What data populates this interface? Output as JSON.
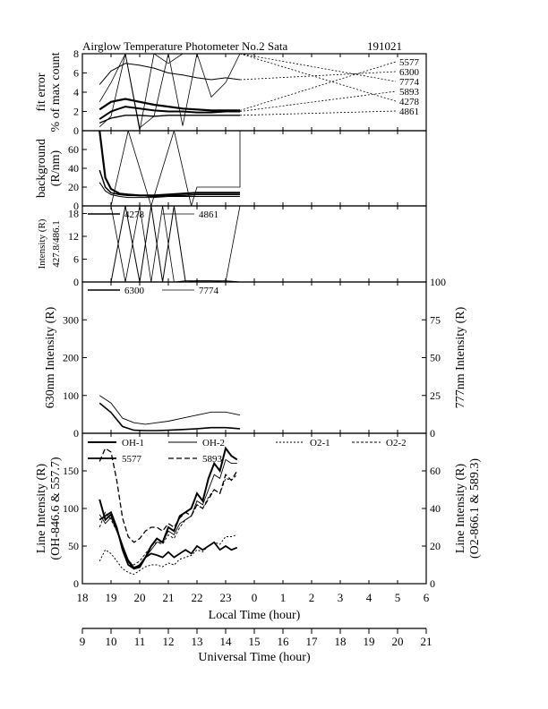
{
  "header": {
    "title": "Airglow Temperature Photometer No.2  Sata",
    "date": "191021"
  },
  "x_axes": {
    "local": {
      "label": "Local Time (hour)",
      "ticks": [
        "18",
        "19",
        "20",
        "21",
        "22",
        "23",
        "0",
        "1",
        "2",
        "3",
        "4",
        "5",
        "6"
      ]
    },
    "ut": {
      "label": "Universal Time (hour)",
      "ticks": [
        "9",
        "10",
        "11",
        "12",
        "13",
        "14",
        "15",
        "16",
        "17",
        "18",
        "19",
        "20",
        "21"
      ]
    }
  },
  "chart_data": [
    {
      "id": "fit-error",
      "type": "line",
      "ylabel": [
        "fit error",
        "% of max count"
      ],
      "ylim": [
        0,
        8
      ],
      "yticks": [
        "0",
        "2",
        "4",
        "6",
        "8"
      ],
      "legend": [
        "5577",
        "6300",
        "7774",
        "5893",
        "4278",
        "4861"
      ],
      "x": [
        18.6,
        19.0,
        19.5,
        20.0,
        20.5,
        21.0,
        21.5,
        22.0,
        22.5,
        23.0,
        23.5
      ],
      "series": [
        {
          "name": "5577",
          "values": [
            2.2,
            3.0,
            3.3,
            3.0,
            2.7,
            2.5,
            2.3,
            2.2,
            2.1,
            2.1,
            2.1
          ]
        },
        {
          "name": "6300",
          "values": [
            4.8,
            6.2,
            7.0,
            6.8,
            6.5,
            6.0,
            5.8,
            5.5,
            5.3,
            5.5,
            5.3
          ]
        },
        {
          "name": "7774",
          "values": [
            3.0,
            5.0,
            8.0,
            0.0,
            8.0,
            7.0,
            8.0,
            8.0,
            3.5,
            5.0,
            8.0
          ]
        },
        {
          "name": "5893",
          "values": [
            1.2,
            2.0,
            2.5,
            2.3,
            2.1,
            2.0,
            2.0,
            1.9,
            1.9,
            2.0,
            2.0
          ]
        },
        {
          "name": "4278",
          "values": [
            0.4,
            1.5,
            8.0,
            0.3,
            1.5,
            8.0,
            0.5,
            8.0,
            8.0,
            8.0,
            8.0
          ]
        },
        {
          "name": "4861",
          "values": [
            0.8,
            1.3,
            1.6,
            1.6,
            1.5,
            1.6,
            1.6,
            1.6,
            1.6,
            1.6,
            1.6
          ]
        }
      ],
      "legend_targets": [
        5.6,
        4.6,
        3.8,
        2.8,
        2.0,
        1.1
      ]
    },
    {
      "id": "background",
      "type": "line",
      "ylabel": [
        "background",
        "(R/nm)"
      ],
      "ylim": [
        0,
        80
      ],
      "yticks": [
        "0",
        "20",
        "40",
        "60"
      ],
      "x": [
        18.6,
        18.8,
        19.0,
        19.3,
        19.6,
        20.0,
        20.5,
        21.0,
        21.5,
        22.0,
        22.5,
        23.0,
        23.5
      ],
      "series": [
        {
          "name": "s1",
          "values": [
            80,
            30,
            18,
            13,
            12,
            11,
            11,
            12,
            13,
            14,
            14,
            14,
            14
          ]
        },
        {
          "name": "s2",
          "values": [
            38,
            20,
            14,
            12,
            11,
            11,
            10,
            11,
            11,
            12,
            12,
            12,
            12
          ]
        },
        {
          "name": "s3",
          "values": [
            25,
            16,
            12,
            10,
            9,
            9,
            9,
            10,
            10,
            10,
            10,
            10,
            10
          ]
        }
      ],
      "spikes": [
        [
          19.0,
          0
        ],
        [
          19.6,
          80
        ],
        [
          20.4,
          0
        ],
        [
          21.2,
          80
        ],
        [
          21.8,
          0
        ],
        [
          22.0,
          20
        ],
        [
          23.5,
          20
        ],
        [
          23.5,
          80
        ]
      ]
    },
    {
      "id": "blue-intensity",
      "type": "line",
      "ylabel": [
        "Intensity (R)",
        "427.8/486.1"
      ],
      "ylim": [
        0,
        20
      ],
      "yticks": [
        "0",
        "6",
        "12",
        "18"
      ],
      "legend": [
        "4278",
        "4861"
      ],
      "x": [
        19.0,
        19.5,
        20.0,
        20.4,
        20.8,
        21.2,
        21.6,
        22.0,
        22.5,
        23.0,
        23.5
      ],
      "series": [
        {
          "name": "4278",
          "values": [
            0,
            20,
            0,
            20,
            0,
            20,
            0,
            0.3,
            0.3,
            0.3,
            0
          ]
        },
        {
          "name": "4861",
          "values": [
            20,
            0,
            20,
            0,
            20,
            0,
            0.3,
            0.3,
            0.3,
            0,
            20
          ]
        }
      ]
    },
    {
      "id": "red-intensity",
      "type": "line",
      "ylabel": "630nm Intensity (R)",
      "ylabel_right": "777nm Intensity (R)",
      "ylim": [
        0,
        400
      ],
      "ylim_right": [
        0,
        100
      ],
      "yticks": [
        "0",
        "100",
        "200",
        "300"
      ],
      "yticks_right": [
        "0",
        "25",
        "50",
        "75",
        "100"
      ],
      "legend": [
        "6300",
        "7774"
      ],
      "x": [
        18.6,
        19.0,
        19.4,
        19.8,
        20.2,
        20.6,
        21.0,
        21.5,
        22.0,
        22.5,
        23.0,
        23.5
      ],
      "series": [
        {
          "name": "6300",
          "values": [
            80,
            55,
            18,
            8,
            7,
            7,
            8,
            10,
            12,
            15,
            15,
            12
          ]
        },
        {
          "name": "7774",
          "values": [
            25,
            20,
            10,
            7,
            6,
            7,
            8,
            10,
            12,
            14,
            14,
            12
          ]
        }
      ]
    },
    {
      "id": "line-intensity",
      "type": "line",
      "ylabel": [
        "Line Intensity (R)",
        "(OH-846.6 & 557.7)"
      ],
      "ylabel_right": [
        "Line Intensity (R)",
        "(O2-866.1 & 589.3)"
      ],
      "ylim": [
        0,
        200
      ],
      "ylim_right": [
        0,
        80
      ],
      "yticks": [
        "0",
        "50",
        "100",
        "150"
      ],
      "yticks_right": [
        "0",
        "20",
        "40",
        "60"
      ],
      "legend": [
        "OH-1",
        "OH-2",
        "O2-1",
        "O2-2",
        "5577",
        "5893"
      ],
      "x": [
        18.6,
        18.8,
        19.0,
        19.2,
        19.4,
        19.6,
        19.8,
        20.0,
        20.2,
        20.4,
        20.6,
        20.8,
        21.0,
        21.2,
        21.4,
        21.6,
        21.8,
        22.0,
        22.2,
        22.4,
        22.6,
        22.8,
        23.0,
        23.2,
        23.4
      ],
      "series": [
        {
          "name": "OH-1",
          "values": [
            112,
            85,
            92,
            72,
            50,
            30,
            20,
            22,
            35,
            50,
            60,
            55,
            75,
            70,
            90,
            95,
            100,
            120,
            110,
            140,
            160,
            150,
            180,
            170,
            165
          ]
        },
        {
          "name": "OH-2",
          "values": [
            92,
            80,
            88,
            70,
            50,
            32,
            22,
            25,
            35,
            45,
            55,
            55,
            70,
            65,
            80,
            85,
            90,
            110,
            105,
            125,
            145,
            140,
            165,
            160,
            160
          ]
        },
        {
          "name": "5577",
          "values": [
            85,
            90,
            95,
            75,
            45,
            25,
            20,
            25,
            35,
            40,
            38,
            35,
            42,
            35,
            40,
            45,
            40,
            50,
            45,
            50,
            55,
            45,
            50,
            45,
            48
          ]
        },
        {
          "name": "5893",
          "values": [
            65,
            72,
            70,
            55,
            35,
            25,
            22,
            24,
            28,
            30,
            30,
            28,
            32,
            30,
            35,
            38,
            36,
            42,
            40,
            45,
            50,
            48,
            58,
            55,
            60
          ]
        },
        {
          "name": "O2-1",
          "values": [
            12,
            18,
            16,
            12,
            8,
            6,
            5,
            7,
            9,
            10,
            10,
            9,
            11,
            10,
            13,
            14,
            15,
            18,
            17,
            20,
            22,
            21,
            25,
            25,
            26
          ]
        },
        {
          "name": "O2-2",
          "values": [
            30,
            38,
            34,
            28,
            20,
            12,
            10,
            12,
            16,
            20,
            22,
            21,
            26,
            24,
            30,
            34,
            36,
            42,
            40,
            46,
            50,
            48,
            56,
            55,
            58
          ]
        }
      ]
    }
  ]
}
